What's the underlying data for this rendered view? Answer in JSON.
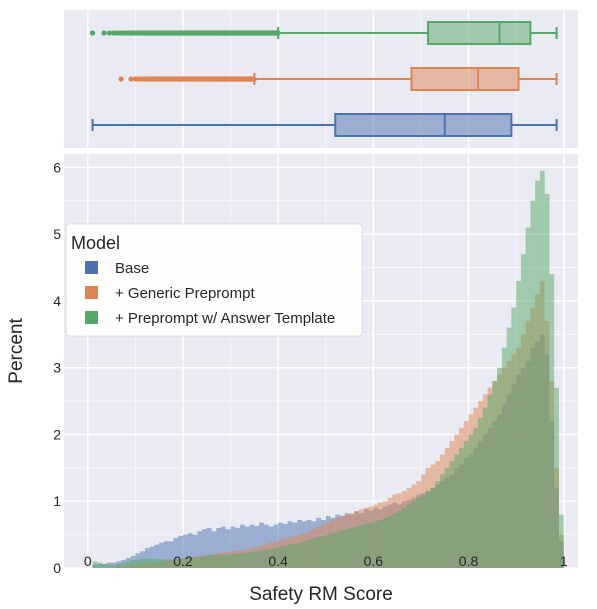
{
  "chart_data": [
    {
      "type": "boxplot",
      "orientation": "horizontal",
      "xlim": [
        -0.05,
        1.03
      ],
      "series": [
        {
          "name": "+ Preprompt w/ Answer Template",
          "color": "#55a868",
          "whisker_low": 0.4,
          "q1": 0.715,
          "median": 0.865,
          "q3": 0.93,
          "whisker_high": 0.985,
          "outliers_range": [
            0.01,
            0.4
          ]
        },
        {
          "name": "+ Generic Preprompt",
          "color": "#dd8452",
          "whisker_low": 0.35,
          "q1": 0.68,
          "median": 0.82,
          "q3": 0.905,
          "whisker_high": 0.985,
          "outliers_range": [
            0.07,
            0.35
          ]
        },
        {
          "name": "Base",
          "color": "#4c72b0",
          "whisker_low": 0.01,
          "q1": 0.52,
          "median": 0.75,
          "q3": 0.89,
          "whisker_high": 0.985,
          "outliers_range": []
        }
      ]
    },
    {
      "type": "histogram",
      "xlabel": "Safety RM Score",
      "ylabel": "Percent",
      "xlim": [
        -0.05,
        1.03
      ],
      "ylim": [
        0,
        6.2
      ],
      "xticks": [
        "0",
        "0.2",
        "0.4",
        "0.6",
        "0.8",
        "1"
      ],
      "yticks": [
        "0",
        "1",
        "2",
        "3",
        "4",
        "5",
        "6"
      ],
      "grid": true,
      "legend": {
        "title": "Model",
        "position": "upper-left"
      },
      "bin_width": 0.01,
      "x_start": 0.0,
      "series": [
        {
          "name": "Base",
          "color": "#4c72b0",
          "values": [
            0.0,
            0.05,
            0.06,
            0.06,
            0.08,
            0.08,
            0.1,
            0.12,
            0.15,
            0.18,
            0.22,
            0.25,
            0.3,
            0.32,
            0.35,
            0.38,
            0.4,
            0.4,
            0.45,
            0.48,
            0.5,
            0.52,
            0.5,
            0.55,
            0.58,
            0.6,
            0.55,
            0.6,
            0.62,
            0.58,
            0.62,
            0.6,
            0.65,
            0.62,
            0.65,
            0.63,
            0.68,
            0.65,
            0.62,
            0.65,
            0.68,
            0.66,
            0.7,
            0.68,
            0.72,
            0.7,
            0.72,
            0.7,
            0.75,
            0.72,
            0.78,
            0.75,
            0.8,
            0.78,
            0.82,
            0.8,
            0.85,
            0.82,
            0.88,
            0.86,
            0.9,
            0.88,
            0.92,
            0.95,
            0.98,
            0.95,
            1.0,
            1.02,
            1.05,
            1.1,
            1.12,
            1.15,
            1.2,
            1.25,
            1.3,
            1.35,
            1.4,
            1.5,
            1.55,
            1.65,
            1.7,
            1.8,
            1.9,
            2.0,
            2.1,
            2.2,
            2.3,
            2.45,
            2.6,
            2.75,
            2.9,
            3.0,
            3.1,
            3.3,
            3.4,
            3.5,
            3.2,
            2.2,
            1.2,
            0.4
          ]
        },
        {
          "name": "+ Generic Preprompt",
          "color": "#dd8452",
          "values": [
            0.0,
            0.0,
            0.0,
            0.0,
            0.0,
            0.0,
            0.02,
            0.03,
            0.03,
            0.04,
            0.05,
            0.06,
            0.07,
            0.08,
            0.09,
            0.1,
            0.11,
            0.12,
            0.13,
            0.14,
            0.15,
            0.16,
            0.17,
            0.18,
            0.19,
            0.2,
            0.21,
            0.22,
            0.23,
            0.24,
            0.25,
            0.26,
            0.27,
            0.28,
            0.3,
            0.32,
            0.34,
            0.36,
            0.38,
            0.4,
            0.42,
            0.44,
            0.46,
            0.48,
            0.5,
            0.52,
            0.55,
            0.58,
            0.62,
            0.65,
            0.68,
            0.72,
            0.75,
            0.78,
            0.8,
            0.82,
            0.85,
            0.88,
            0.9,
            0.92,
            0.95,
            0.98,
            1.0,
            1.05,
            1.1,
            1.12,
            1.15,
            1.2,
            1.25,
            1.3,
            1.4,
            1.5,
            1.55,
            1.6,
            1.7,
            1.8,
            1.9,
            2.0,
            2.1,
            2.2,
            2.3,
            2.4,
            2.5,
            2.6,
            2.7,
            2.8,
            2.9,
            3.0,
            3.1,
            3.2,
            3.3,
            3.5,
            3.7,
            3.9,
            4.1,
            4.3,
            3.7,
            2.8,
            1.5,
            0.5
          ]
        },
        {
          "name": "+ Preprompt w/ Answer Template",
          "color": "#55a868",
          "values": [
            0.0,
            0.1,
            0.08,
            0.06,
            0.05,
            0.05,
            0.06,
            0.08,
            0.1,
            0.12,
            0.13,
            0.14,
            0.14,
            0.14,
            0.14,
            0.13,
            0.13,
            0.13,
            0.14,
            0.14,
            0.15,
            0.15,
            0.16,
            0.17,
            0.18,
            0.19,
            0.2,
            0.2,
            0.2,
            0.2,
            0.21,
            0.21,
            0.22,
            0.23,
            0.24,
            0.25,
            0.26,
            0.27,
            0.28,
            0.3,
            0.32,
            0.33,
            0.35,
            0.36,
            0.38,
            0.4,
            0.42,
            0.44,
            0.46,
            0.48,
            0.5,
            0.52,
            0.54,
            0.56,
            0.58,
            0.6,
            0.62,
            0.64,
            0.66,
            0.68,
            0.7,
            0.72,
            0.75,
            0.78,
            0.82,
            0.85,
            0.9,
            0.95,
            1.0,
            1.05,
            1.1,
            1.15,
            1.2,
            1.3,
            1.4,
            1.5,
            1.6,
            1.7,
            1.8,
            1.9,
            2.0,
            2.1,
            2.25,
            2.4,
            2.6,
            2.8,
            3.0,
            3.3,
            3.6,
            3.9,
            4.3,
            4.7,
            5.1,
            5.5,
            5.8,
            5.95,
            5.6,
            4.4,
            2.7,
            0.8
          ]
        }
      ]
    }
  ]
}
